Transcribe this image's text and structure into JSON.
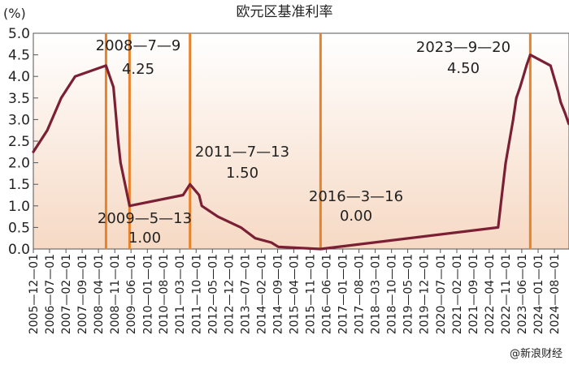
{
  "chart_data": {
    "type": "line",
    "title": "欧元区基准利率",
    "ylabel": "(%)",
    "xlabel": "",
    "ylim": [
      0,
      5.0
    ],
    "yticks": [
      "5.0",
      "4.5",
      "4.0",
      "3.5",
      "3.0",
      "2.5",
      "2.0",
      "1.5",
      "1.0",
      "0.5",
      "0.0"
    ],
    "grid": false,
    "series_color": "#7a1f34",
    "marker_color": "#e8822a",
    "background_gradient": [
      "#ffffff",
      "#f6d9c4"
    ],
    "x_categories": [
      "2005—12—01",
      "2006—07—01",
      "2007—02—01",
      "2007—09—01",
      "2008—04—01",
      "2008—11—01",
      "2009—06—01",
      "2010—01—01",
      "2010—08—01",
      "2011—03—01",
      "2011—10—01",
      "2012—05—01",
      "2012—12—01",
      "2013—07—01",
      "2014—02—01",
      "2014—09—01",
      "2015—04—01",
      "2015—11—01",
      "2016—06—01",
      "2017—01—01",
      "2017—08—01",
      "2018—03—01",
      "2018—10—01",
      "2019—05—01",
      "2019—12—01",
      "2020—07—01",
      "2021—02—01",
      "2021—09—01",
      "2022—04—01",
      "2022—11—01",
      "2023—06—01",
      "2024—01—01",
      "2024—08—01"
    ],
    "series": [
      {
        "points": [
          [
            "2005-12-01",
            2.25
          ],
          [
            "2006-06-01",
            2.75
          ],
          [
            "2006-12-01",
            3.5
          ],
          [
            "2007-06-01",
            4.0
          ],
          [
            "2008-07-09",
            4.25
          ],
          [
            "2008-10-15",
            3.75
          ],
          [
            "2008-12-15",
            2.5
          ],
          [
            "2009-01-15",
            2.0
          ],
          [
            "2009-05-13",
            1.0
          ],
          [
            "2011-04-13",
            1.25
          ],
          [
            "2011-07-13",
            1.5
          ],
          [
            "2011-11-09",
            1.25
          ],
          [
            "2011-12-14",
            1.0
          ],
          [
            "2012-07-11",
            0.75
          ],
          [
            "2013-05-08",
            0.5
          ],
          [
            "2013-11-13",
            0.25
          ],
          [
            "2014-06-11",
            0.15
          ],
          [
            "2014-09-10",
            0.05
          ],
          [
            "2016-03-16",
            0.0
          ],
          [
            "2022-07-27",
            0.5
          ],
          [
            "2022-09-14",
            1.25
          ],
          [
            "2022-11-02",
            2.0
          ],
          [
            "2022-12-21",
            2.5
          ],
          [
            "2023-02-08",
            3.0
          ],
          [
            "2023-03-22",
            3.5
          ],
          [
            "2023-05-10",
            3.75
          ],
          [
            "2023-06-21",
            4.0
          ],
          [
            "2023-08-02",
            4.25
          ],
          [
            "2023-09-20",
            4.5
          ],
          [
            "2024-06-12",
            4.25
          ],
          [
            "2024-09-18",
            3.65
          ],
          [
            "2024-10-23",
            3.4
          ],
          [
            "2024-12-18",
            3.15
          ],
          [
            "2025-02-05",
            2.9
          ]
        ]
      }
    ],
    "markers": [
      {
        "x": "2008-07-09",
        "label_date": "2008—7—9",
        "label_value": "4.25"
      },
      {
        "x": "2009-05-13",
        "label_date": "2009—5—13",
        "label_value": "1.00"
      },
      {
        "x": "2011-07-13",
        "label_date": "2011—7—13",
        "label_value": "1.50"
      },
      {
        "x": "2016-03-16",
        "label_date": "2016—3—16",
        "label_value": "0.00"
      },
      {
        "x": "2023-09-20",
        "label_date": "2023—9—20",
        "label_value": "4.50"
      }
    ],
    "watermark": "@新浪财经"
  }
}
